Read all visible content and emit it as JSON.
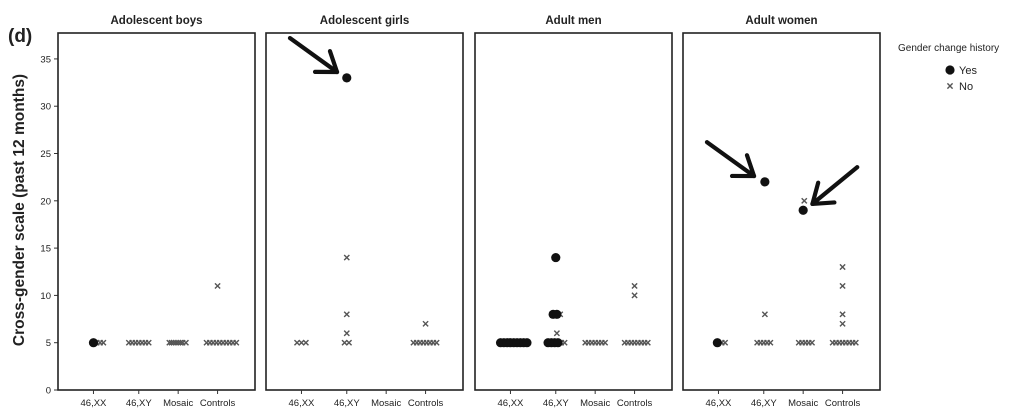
{
  "chart_data": {
    "type": "scatter",
    "panel_letter": "(d)",
    "ylabel": "Cross-gender scale (past 12 months)",
    "ylim": [
      0,
      37
    ],
    "yticks": [
      0,
      5,
      10,
      15,
      20,
      25,
      30,
      35
    ],
    "categories": [
      "46,XX",
      "46,XY",
      "Mosaic",
      "Controls"
    ],
    "legend": {
      "title": "Gender change history",
      "placement": "right",
      "items": [
        {
          "label": "Yes",
          "marker": "circle"
        },
        {
          "label": "No",
          "marker": "cross"
        }
      ]
    },
    "panels": [
      {
        "title": "Adolescent boys",
        "points": [
          {
            "cat": "46,XX",
            "offset": 0.0,
            "y": 5,
            "yes": true
          },
          {
            "cat": "46,XX",
            "offset": 0.15,
            "y": 5,
            "yes": false
          },
          {
            "cat": "46,XX",
            "offset": 0.3,
            "y": 5,
            "yes": false
          },
          {
            "cat": "46,XX",
            "offset": 0.45,
            "y": 5,
            "yes": false
          },
          {
            "cat": "46,XY",
            "offset": -0.45,
            "y": 5,
            "yes": false
          },
          {
            "cat": "46,XY",
            "offset": -0.3,
            "y": 5,
            "yes": false
          },
          {
            "cat": "46,XY",
            "offset": -0.15,
            "y": 5,
            "yes": false
          },
          {
            "cat": "46,XY",
            "offset": 0.0,
            "y": 5,
            "yes": false
          },
          {
            "cat": "46,XY",
            "offset": 0.15,
            "y": 5,
            "yes": false
          },
          {
            "cat": "46,XY",
            "offset": 0.3,
            "y": 5,
            "yes": false
          },
          {
            "cat": "46,XY",
            "offset": 0.45,
            "y": 5,
            "yes": false
          },
          {
            "cat": "Mosaic",
            "offset": -0.4,
            "y": 5,
            "yes": false
          },
          {
            "cat": "Mosaic",
            "offset": -0.3,
            "y": 5,
            "yes": false
          },
          {
            "cat": "Mosaic",
            "offset": -0.2,
            "y": 5,
            "yes": false
          },
          {
            "cat": "Mosaic",
            "offset": -0.1,
            "y": 5,
            "yes": false
          },
          {
            "cat": "Mosaic",
            "offset": 0.0,
            "y": 5,
            "yes": false
          },
          {
            "cat": "Mosaic",
            "offset": 0.1,
            "y": 5,
            "yes": false
          },
          {
            "cat": "Mosaic",
            "offset": 0.2,
            "y": 5,
            "yes": false
          },
          {
            "cat": "Mosaic",
            "offset": 0.35,
            "y": 5,
            "yes": false
          },
          {
            "cat": "Controls",
            "offset": -0.5,
            "y": 5,
            "yes": false
          },
          {
            "cat": "Controls",
            "offset": -0.35,
            "y": 5,
            "yes": false
          },
          {
            "cat": "Controls",
            "offset": -0.2,
            "y": 5,
            "yes": false
          },
          {
            "cat": "Controls",
            "offset": -0.05,
            "y": 5,
            "yes": false
          },
          {
            "cat": "Controls",
            "offset": 0.1,
            "y": 5,
            "yes": false
          },
          {
            "cat": "Controls",
            "offset": 0.25,
            "y": 5,
            "yes": false
          },
          {
            "cat": "Controls",
            "offset": 0.4,
            "y": 5,
            "yes": false
          },
          {
            "cat": "Controls",
            "offset": 0.55,
            "y": 5,
            "yes": false
          },
          {
            "cat": "Controls",
            "offset": 0.7,
            "y": 5,
            "yes": false
          },
          {
            "cat": "Controls",
            "offset": 0.85,
            "y": 5,
            "yes": false
          },
          {
            "cat": "Controls",
            "offset": 0.0,
            "y": 11,
            "yes": false
          }
        ],
        "arrows": []
      },
      {
        "title": "Adolescent girls",
        "points": [
          {
            "cat": "46,XX",
            "offset": -0.2,
            "y": 5,
            "yes": false
          },
          {
            "cat": "46,XX",
            "offset": 0.0,
            "y": 5,
            "yes": false
          },
          {
            "cat": "46,XX",
            "offset": 0.2,
            "y": 5,
            "yes": false
          },
          {
            "cat": "46,XY",
            "offset": 0.0,
            "y": 33,
            "yes": true
          },
          {
            "cat": "46,XY",
            "offset": 0.0,
            "y": 14,
            "yes": false
          },
          {
            "cat": "46,XY",
            "offset": 0.0,
            "y": 8,
            "yes": false
          },
          {
            "cat": "46,XY",
            "offset": 0.0,
            "y": 6,
            "yes": false
          },
          {
            "cat": "46,XY",
            "offset": -0.1,
            "y": 5,
            "yes": false
          },
          {
            "cat": "46,XY",
            "offset": 0.1,
            "y": 5,
            "yes": false
          },
          {
            "cat": "Controls",
            "offset": -0.55,
            "y": 5,
            "yes": false
          },
          {
            "cat": "Controls",
            "offset": -0.4,
            "y": 5,
            "yes": false
          },
          {
            "cat": "Controls",
            "offset": -0.25,
            "y": 5,
            "yes": false
          },
          {
            "cat": "Controls",
            "offset": -0.1,
            "y": 5,
            "yes": false
          },
          {
            "cat": "Controls",
            "offset": 0.05,
            "y": 5,
            "yes": false
          },
          {
            "cat": "Controls",
            "offset": 0.2,
            "y": 5,
            "yes": false
          },
          {
            "cat": "Controls",
            "offset": 0.35,
            "y": 5,
            "yes": false
          },
          {
            "cat": "Controls",
            "offset": 0.5,
            "y": 5,
            "yes": false
          },
          {
            "cat": "Controls",
            "offset": 0.0,
            "y": 7,
            "yes": false
          }
        ],
        "arrows": [
          {
            "target_cat": "46,XY",
            "target_y": 33,
            "direction": "from-upper-left"
          }
        ]
      },
      {
        "title": "Adult men",
        "points": [
          {
            "cat": "46,XX",
            "offset": -0.45,
            "y": 5,
            "yes": true
          },
          {
            "cat": "46,XX",
            "offset": -0.3,
            "y": 5,
            "yes": true
          },
          {
            "cat": "46,XX",
            "offset": -0.15,
            "y": 5,
            "yes": true
          },
          {
            "cat": "46,XX",
            "offset": 0.0,
            "y": 5,
            "yes": true
          },
          {
            "cat": "46,XX",
            "offset": 0.15,
            "y": 5,
            "yes": true
          },
          {
            "cat": "46,XX",
            "offset": 0.3,
            "y": 5,
            "yes": true
          },
          {
            "cat": "46,XX",
            "offset": 0.45,
            "y": 5,
            "yes": true
          },
          {
            "cat": "46,XX",
            "offset": 0.6,
            "y": 5,
            "yes": true
          },
          {
            "cat": "46,XX",
            "offset": 0.75,
            "y": 5,
            "yes": true
          },
          {
            "cat": "46,XY",
            "offset": -0.35,
            "y": 5,
            "yes": true
          },
          {
            "cat": "46,XY",
            "offset": -0.2,
            "y": 5,
            "yes": true
          },
          {
            "cat": "46,XY",
            "offset": -0.05,
            "y": 5,
            "yes": true
          },
          {
            "cat": "46,XY",
            "offset": 0.1,
            "y": 5,
            "yes": true
          },
          {
            "cat": "46,XY",
            "offset": 0.0,
            "y": 14,
            "yes": true
          },
          {
            "cat": "46,XY",
            "offset": -0.12,
            "y": 8,
            "yes": true
          },
          {
            "cat": "46,XY",
            "offset": 0.05,
            "y": 8,
            "yes": true
          },
          {
            "cat": "46,XY",
            "offset": 0.2,
            "y": 8,
            "yes": false
          },
          {
            "cat": "46,XY",
            "offset": 0.05,
            "y": 6,
            "yes": false
          },
          {
            "cat": "46,XX",
            "offset": -0.35,
            "y": 5,
            "yes": false
          },
          {
            "cat": "46,XX",
            "offset": -0.05,
            "y": 5,
            "yes": false
          },
          {
            "cat": "46,XY",
            "offset": 0.25,
            "y": 5,
            "yes": false
          },
          {
            "cat": "46,XY",
            "offset": 0.4,
            "y": 5,
            "yes": false
          },
          {
            "cat": "Mosaic",
            "offset": -0.45,
            "y": 5,
            "yes": false
          },
          {
            "cat": "Mosaic",
            "offset": -0.3,
            "y": 5,
            "yes": false
          },
          {
            "cat": "Mosaic",
            "offset": -0.15,
            "y": 5,
            "yes": false
          },
          {
            "cat": "Mosaic",
            "offset": 0.0,
            "y": 5,
            "yes": false
          },
          {
            "cat": "Mosaic",
            "offset": 0.15,
            "y": 5,
            "yes": false
          },
          {
            "cat": "Mosaic",
            "offset": 0.3,
            "y": 5,
            "yes": false
          },
          {
            "cat": "Mosaic",
            "offset": 0.45,
            "y": 5,
            "yes": false
          },
          {
            "cat": "Controls",
            "offset": -0.45,
            "y": 5,
            "yes": false
          },
          {
            "cat": "Controls",
            "offset": -0.3,
            "y": 5,
            "yes": false
          },
          {
            "cat": "Controls",
            "offset": -0.15,
            "y": 5,
            "yes": false
          },
          {
            "cat": "Controls",
            "offset": 0.0,
            "y": 5,
            "yes": false
          },
          {
            "cat": "Controls",
            "offset": 0.15,
            "y": 5,
            "yes": false
          },
          {
            "cat": "Controls",
            "offset": 0.3,
            "y": 5,
            "yes": false
          },
          {
            "cat": "Controls",
            "offset": 0.45,
            "y": 5,
            "yes": false
          },
          {
            "cat": "Controls",
            "offset": 0.6,
            "y": 5,
            "yes": false
          },
          {
            "cat": "Controls",
            "offset": 0.0,
            "y": 11,
            "yes": false
          },
          {
            "cat": "Controls",
            "offset": 0.0,
            "y": 10,
            "yes": false
          }
        ],
        "arrows": []
      },
      {
        "title": "Adult women",
        "points": [
          {
            "cat": "46,XX",
            "offset": -0.05,
            "y": 5,
            "yes": true
          },
          {
            "cat": "46,XX",
            "offset": 0.15,
            "y": 5,
            "yes": false
          },
          {
            "cat": "46,XX",
            "offset": 0.3,
            "y": 5,
            "yes": false
          },
          {
            "cat": "46,XY",
            "offset": 0.05,
            "y": 22,
            "yes": true
          },
          {
            "cat": "46,XY",
            "offset": 0.05,
            "y": 8,
            "yes": false
          },
          {
            "cat": "46,XY",
            "offset": -0.3,
            "y": 5,
            "yes": false
          },
          {
            "cat": "46,XY",
            "offset": -0.15,
            "y": 5,
            "yes": false
          },
          {
            "cat": "46,XY",
            "offset": 0.0,
            "y": 5,
            "yes": false
          },
          {
            "cat": "46,XY",
            "offset": 0.15,
            "y": 5,
            "yes": false
          },
          {
            "cat": "46,XY",
            "offset": 0.3,
            "y": 5,
            "yes": false
          },
          {
            "cat": "Mosaic",
            "offset": 0.0,
            "y": 19,
            "yes": true
          },
          {
            "cat": "Mosaic",
            "offset": 0.05,
            "y": 20,
            "yes": false
          },
          {
            "cat": "Mosaic",
            "offset": -0.2,
            "y": 5,
            "yes": false
          },
          {
            "cat": "Mosaic",
            "offset": -0.05,
            "y": 5,
            "yes": false
          },
          {
            "cat": "Mosaic",
            "offset": 0.1,
            "y": 5,
            "yes": false
          },
          {
            "cat": "Mosaic",
            "offset": 0.25,
            "y": 5,
            "yes": false
          },
          {
            "cat": "Mosaic",
            "offset": 0.4,
            "y": 5,
            "yes": false
          },
          {
            "cat": "Controls",
            "offset": -0.45,
            "y": 5,
            "yes": false
          },
          {
            "cat": "Controls",
            "offset": -0.3,
            "y": 5,
            "yes": false
          },
          {
            "cat": "Controls",
            "offset": -0.15,
            "y": 5,
            "yes": false
          },
          {
            "cat": "Controls",
            "offset": 0.0,
            "y": 5,
            "yes": false
          },
          {
            "cat": "Controls",
            "offset": 0.15,
            "y": 5,
            "yes": false
          },
          {
            "cat": "Controls",
            "offset": 0.3,
            "y": 5,
            "yes": false
          },
          {
            "cat": "Controls",
            "offset": 0.45,
            "y": 5,
            "yes": false
          },
          {
            "cat": "Controls",
            "offset": 0.6,
            "y": 5,
            "yes": false
          },
          {
            "cat": "Controls",
            "offset": 0.0,
            "y": 13,
            "yes": false
          },
          {
            "cat": "Controls",
            "offset": 0.0,
            "y": 11,
            "yes": false
          },
          {
            "cat": "Controls",
            "offset": 0.0,
            "y": 8,
            "yes": false
          },
          {
            "cat": "Controls",
            "offset": 0.0,
            "y": 7,
            "yes": false
          }
        ],
        "arrows": [
          {
            "target_cat": "46,XY",
            "target_y": 22,
            "direction": "from-upper-left"
          },
          {
            "target_cat": "Mosaic",
            "target_y": 19,
            "direction": "from-upper-right"
          }
        ]
      }
    ]
  }
}
